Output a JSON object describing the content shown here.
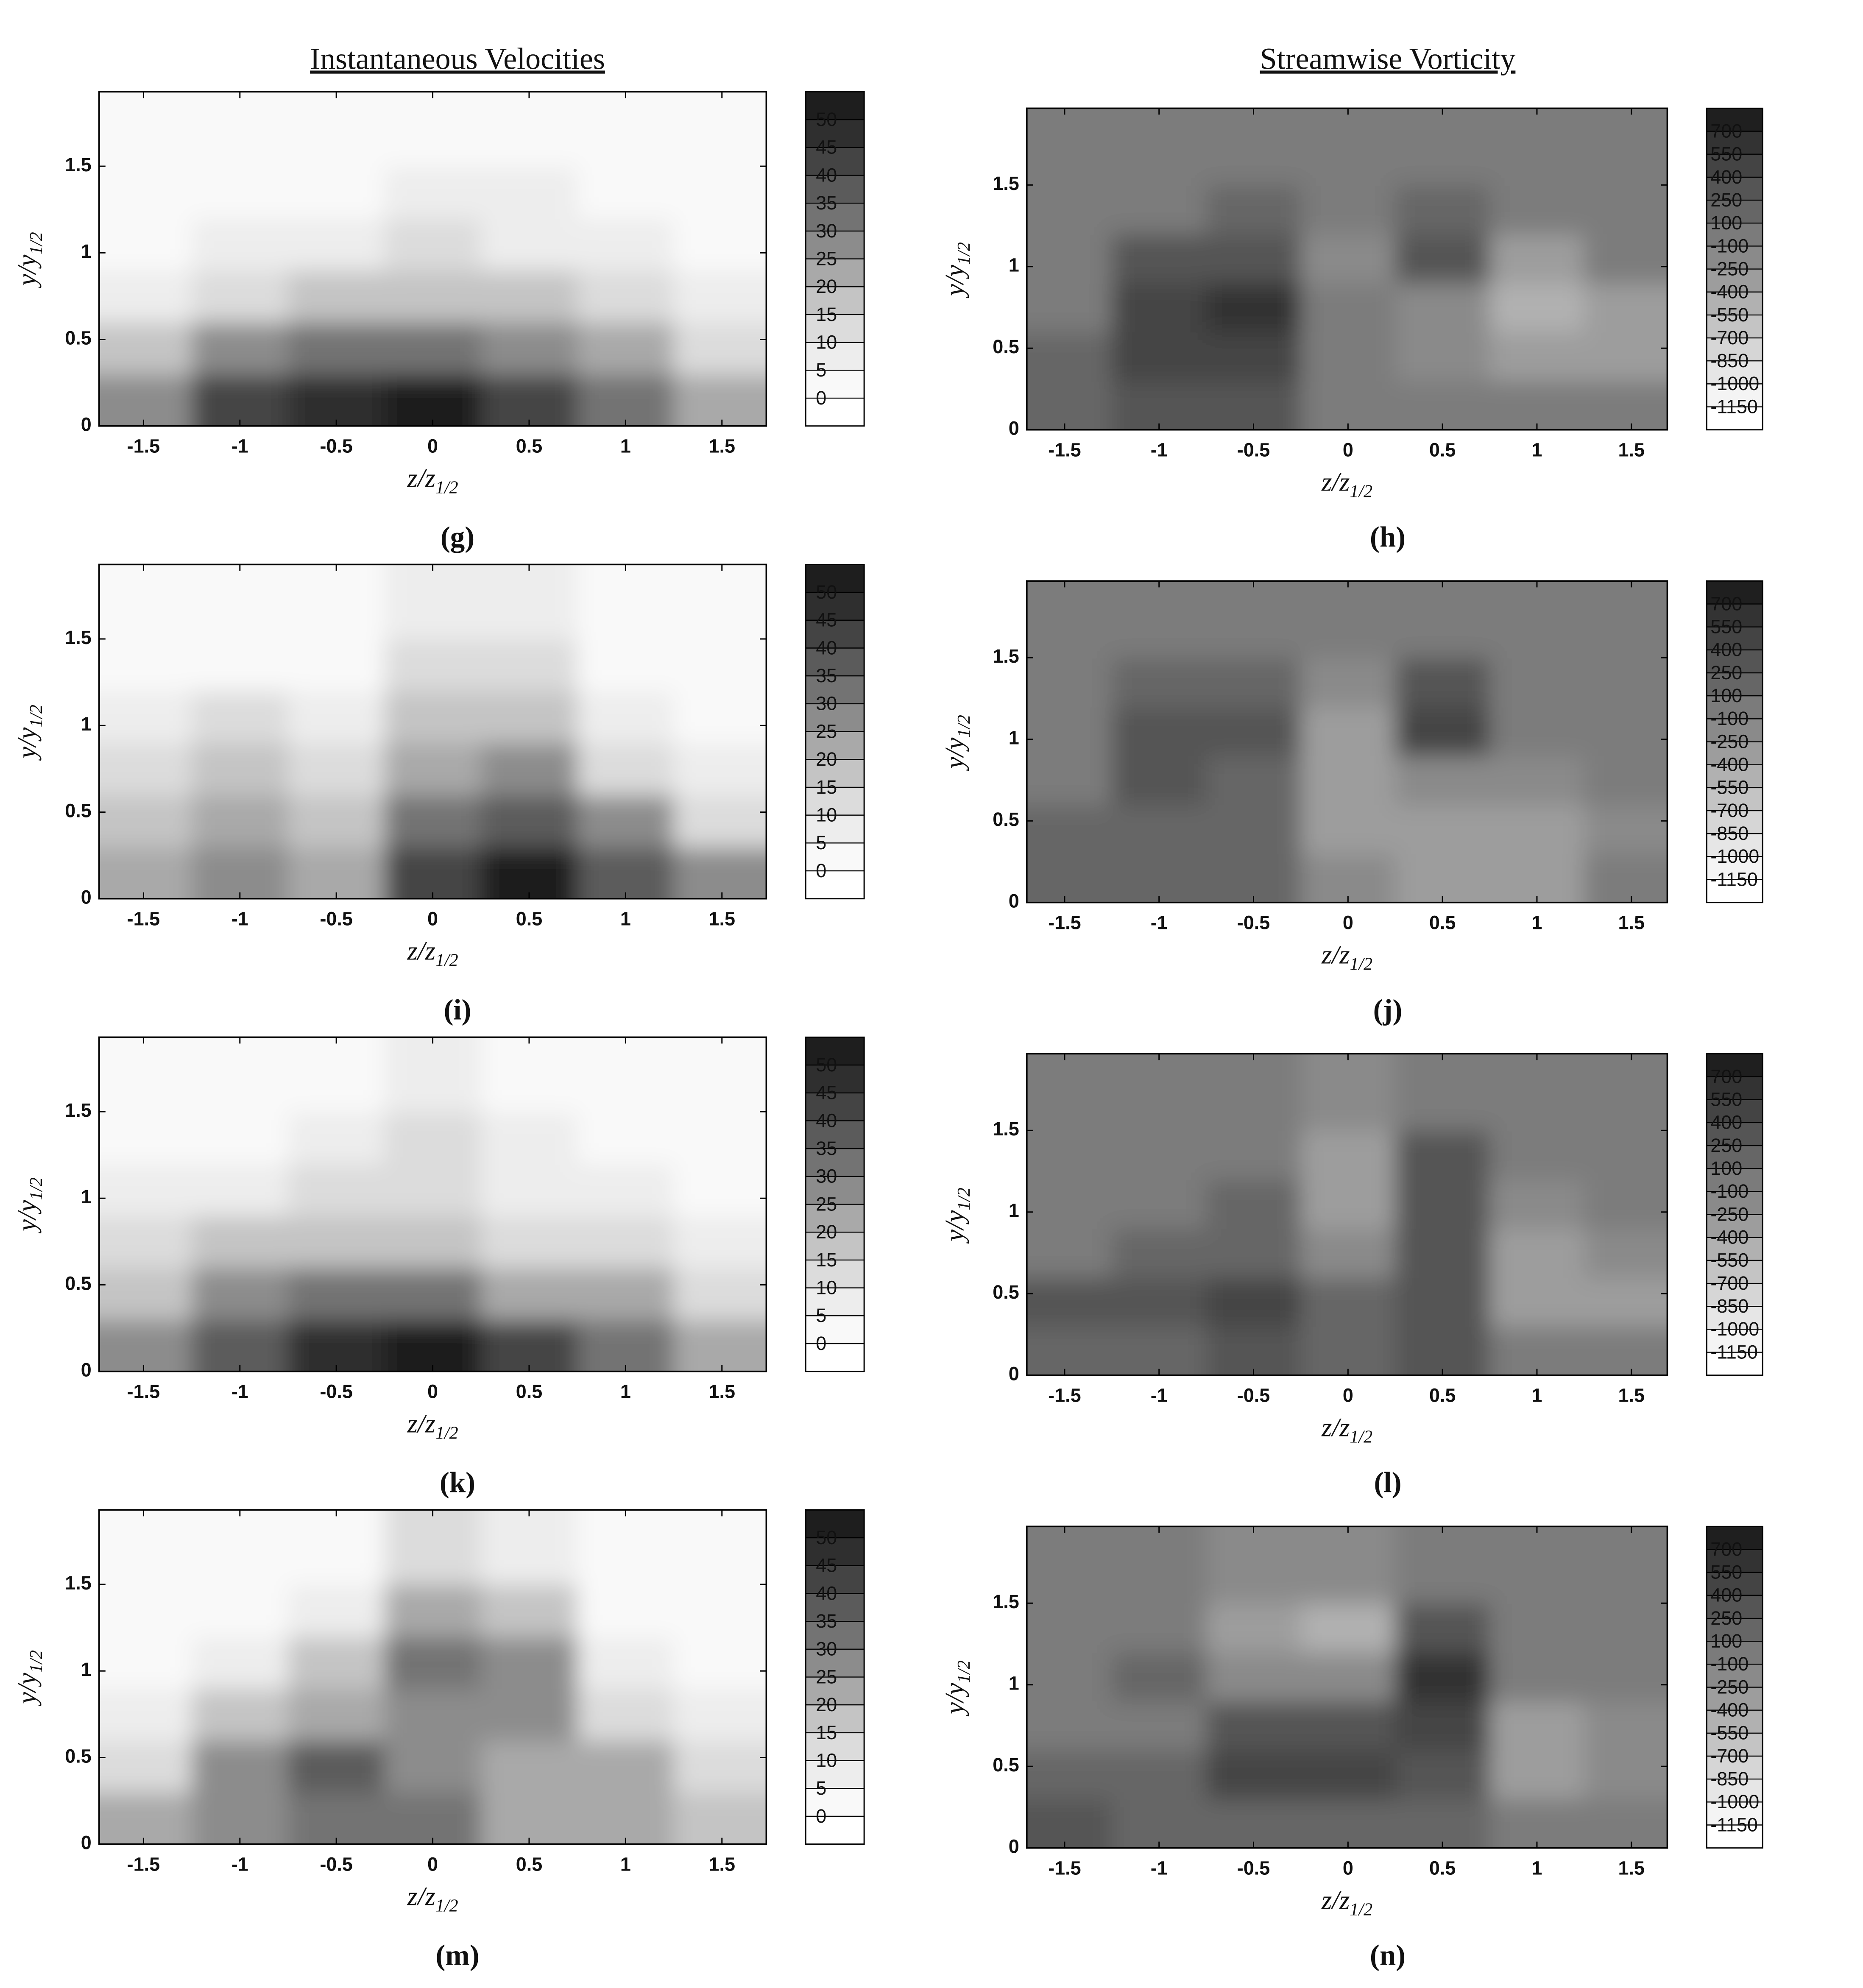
{
  "chart_data": [
    {
      "type": "contour",
      "title": "Instantaneous Velocities",
      "label": "(g)",
      "xlabel": {
        "text": "z/z",
        "sub": "1/2"
      },
      "ylabel": {
        "text": "y/y",
        "sub": "1/2"
      },
      "xlim": [
        -1.73,
        1.73
      ],
      "ylim": [
        0,
        1.93
      ],
      "xticks": [
        -1.5,
        -1,
        -0.5,
        0,
        0.5,
        1,
        1.5
      ],
      "yticks": [
        0,
        0.5,
        1,
        1.5
      ],
      "x": [
        -1.5,
        -1,
        -0.5,
        0,
        0.5,
        1,
        1.5
      ],
      "y": [
        0.15,
        0.45,
        0.75,
        1.05,
        1.35,
        1.65
      ],
      "values": [
        [
          25,
          40,
          48,
          50,
          40,
          30,
          20
        ],
        [
          15,
          25,
          30,
          30,
          25,
          20,
          10
        ],
        [
          8,
          12,
          15,
          15,
          15,
          10,
          5
        ],
        [
          3,
          5,
          5,
          10,
          8,
          5,
          3
        ],
        [
          0,
          0,
          0,
          5,
          5,
          0,
          0
        ],
        [
          0,
          0,
          0,
          0,
          0,
          0,
          0
        ]
      ],
      "levels": [
        0,
        5,
        10,
        15,
        20,
        25,
        30,
        35,
        40,
        45,
        50
      ],
      "colors": [
        "#ffffff",
        "#f9f9f9",
        "#ededed",
        "#dcdcdc",
        "#c4c4c4",
        "#a9a9a9",
        "#8c8c8c",
        "#737373",
        "#5b5b5b",
        "#444444",
        "#2f2f2f",
        "#1e1e1e"
      ]
    },
    {
      "type": "contour",
      "title": "Streamwise Vorticity",
      "label": "(h)",
      "xlabel": {
        "text": "z/z",
        "sub": "1/2"
      },
      "ylabel": {
        "text": "y/y",
        "sub": "1/2"
      },
      "xlim": [
        -1.7,
        1.69
      ],
      "ylim": [
        0,
        1.97
      ],
      "xticks": [
        -1.5,
        -1,
        -0.5,
        0,
        0.5,
        1,
        1.5
      ],
      "yticks": [
        0,
        0.5,
        1,
        1.5
      ],
      "x": [
        -1.5,
        -1,
        -0.5,
        0,
        0.5,
        1,
        1.5
      ],
      "y": [
        0.15,
        0.45,
        0.75,
        1.05,
        1.35,
        1.65
      ],
      "values": [
        [
          200,
          300,
          300,
          0,
          0,
          0,
          0
        ],
        [
          150,
          400,
          450,
          0,
          -200,
          -400,
          -300
        ],
        [
          0,
          400,
          550,
          0,
          -150,
          -550,
          -300
        ],
        [
          0,
          250,
          250,
          -200,
          300,
          -300,
          0
        ],
        [
          0,
          0,
          150,
          0,
          150,
          0,
          0
        ],
        [
          0,
          0,
          0,
          0,
          0,
          0,
          0
        ]
      ],
      "levels": [
        -1150,
        -1000,
        -850,
        -700,
        -550,
        -400,
        -250,
        -100,
        100,
        250,
        400,
        550,
        700
      ],
      "colors": [
        "#ffffff",
        "#f4f4f4",
        "#e6e6e6",
        "#d6d6d6",
        "#c4c4c4",
        "#b1b1b1",
        "#9d9d9d",
        "#8a8a8a",
        "#7b7b7b",
        "#666666",
        "#555555",
        "#444444",
        "#333333",
        "#1f1f1f"
      ]
    },
    {
      "type": "contour",
      "label": "(i)",
      "xlabel": {
        "text": "z/z",
        "sub": "1/2"
      },
      "ylabel": {
        "text": "y/y",
        "sub": "1/2"
      },
      "xlim": [
        -1.73,
        1.73
      ],
      "ylim": [
        0,
        1.93
      ],
      "xticks": [
        -1.5,
        -1,
        -0.5,
        0,
        0.5,
        1,
        1.5
      ],
      "yticks": [
        0,
        0.5,
        1,
        1.5
      ],
      "x": [
        -1.5,
        -1,
        -0.5,
        0,
        0.5,
        1,
        1.5
      ],
      "y": [
        0.15,
        0.45,
        0.75,
        1.05,
        1.35,
        1.65
      ],
      "values": [
        [
          20,
          25,
          20,
          40,
          50,
          35,
          25
        ],
        [
          15,
          20,
          15,
          30,
          35,
          25,
          10
        ],
        [
          10,
          15,
          10,
          20,
          25,
          10,
          5
        ],
        [
          5,
          10,
          5,
          15,
          15,
          5,
          0
        ],
        [
          0,
          0,
          0,
          10,
          10,
          0,
          0
        ],
        [
          0,
          0,
          0,
          5,
          5,
          0,
          0
        ]
      ],
      "levels": [
        0,
        5,
        10,
        15,
        20,
        25,
        30,
        35,
        40,
        45,
        50
      ],
      "colors": [
        "#ffffff",
        "#f9f9f9",
        "#ededed",
        "#dcdcdc",
        "#c4c4c4",
        "#a9a9a9",
        "#8c8c8c",
        "#737373",
        "#5b5b5b",
        "#444444",
        "#2f2f2f",
        "#1e1e1e"
      ]
    },
    {
      "type": "contour",
      "label": "(j)",
      "xlabel": {
        "text": "z/z",
        "sub": "1/2"
      },
      "ylabel": {
        "text": "y/y",
        "sub": "1/2"
      },
      "xlim": [
        -1.7,
        1.69
      ],
      "ylim": [
        0,
        1.97
      ],
      "xticks": [
        -1.5,
        -1,
        -0.5,
        0,
        0.5,
        1,
        1.5
      ],
      "yticks": [
        0,
        0.5,
        1,
        1.5
      ],
      "x": [
        -1.5,
        -1,
        -0.5,
        0,
        0.5,
        1,
        1.5
      ],
      "y": [
        0.15,
        0.45,
        0.75,
        1.05,
        1.35,
        1.65
      ],
      "values": [
        [
          200,
          150,
          200,
          -200,
          -300,
          -300,
          0
        ],
        [
          150,
          200,
          150,
          -400,
          -300,
          -400,
          -200
        ],
        [
          0,
          250,
          200,
          -400,
          -250,
          -200,
          0
        ],
        [
          0,
          350,
          250,
          -400,
          400,
          0,
          0
        ],
        [
          0,
          200,
          200,
          -200,
          250,
          0,
          0
        ],
        [
          0,
          0,
          0,
          -100,
          0,
          0,
          0
        ]
      ],
      "levels": [
        -1150,
        -1000,
        -850,
        -700,
        -550,
        -400,
        -250,
        -100,
        100,
        250,
        400,
        550,
        700
      ],
      "colors": [
        "#ffffff",
        "#f4f4f4",
        "#e6e6e6",
        "#d6d6d6",
        "#c4c4c4",
        "#b1b1b1",
        "#9d9d9d",
        "#8a8a8a",
        "#7b7b7b",
        "#666666",
        "#555555",
        "#444444",
        "#333333",
        "#1f1f1f"
      ]
    },
    {
      "type": "contour",
      "label": "(k)",
      "xlabel": {
        "text": "z/z",
        "sub": "1/2"
      },
      "ylabel": {
        "text": "y/y",
        "sub": "1/2"
      },
      "xlim": [
        -1.73,
        1.73
      ],
      "ylim": [
        0,
        1.93
      ],
      "xticks": [
        -1.5,
        -1,
        -0.5,
        0,
        0.5,
        1,
        1.5
      ],
      "yticks": [
        0,
        0.5,
        1,
        1.5
      ],
      "x": [
        -1.5,
        -1,
        -0.5,
        0,
        0.5,
        1,
        1.5
      ],
      "y": [
        0.15,
        0.45,
        0.75,
        1.05,
        1.35,
        1.65
      ],
      "values": [
        [
          25,
          35,
          45,
          50,
          40,
          30,
          20
        ],
        [
          15,
          25,
          30,
          30,
          20,
          20,
          10
        ],
        [
          10,
          15,
          15,
          15,
          10,
          10,
          5
        ],
        [
          5,
          5,
          10,
          10,
          5,
          5,
          0
        ],
        [
          0,
          0,
          5,
          10,
          5,
          0,
          0
        ],
        [
          0,
          0,
          0,
          5,
          0,
          0,
          0
        ]
      ],
      "levels": [
        0,
        5,
        10,
        15,
        20,
        25,
        30,
        35,
        40,
        45,
        50
      ],
      "colors": [
        "#ffffff",
        "#f9f9f9",
        "#ededed",
        "#dcdcdc",
        "#c4c4c4",
        "#a9a9a9",
        "#8c8c8c",
        "#737373",
        "#5b5b5b",
        "#444444",
        "#2f2f2f",
        "#1e1e1e"
      ]
    },
    {
      "type": "contour",
      "label": "(l)",
      "xlabel": {
        "text": "z/z",
        "sub": "1/2"
      },
      "ylabel": {
        "text": "y/y",
        "sub": "1/2"
      },
      "xlim": [
        -1.7,
        1.69
      ],
      "ylim": [
        0,
        1.97
      ],
      "xticks": [
        -1.5,
        -1,
        -0.5,
        0,
        0.5,
        1,
        1.5
      ],
      "yticks": [
        0,
        0.5,
        1,
        1.5
      ],
      "x": [
        -1.5,
        -1,
        -0.5,
        0,
        0.5,
        1,
        1.5
      ],
      "y": [
        0.15,
        0.45,
        0.75,
        1.05,
        1.35,
        1.65
      ],
      "values": [
        [
          200,
          150,
          300,
          150,
          250,
          -100,
          -100
        ],
        [
          250,
          250,
          400,
          150,
          250,
          -300,
          -300
        ],
        [
          0,
          200,
          150,
          -200,
          300,
          -300,
          -200
        ],
        [
          0,
          0,
          150,
          -300,
          300,
          -200,
          0
        ],
        [
          0,
          0,
          0,
          -400,
          250,
          0,
          0
        ],
        [
          0,
          0,
          0,
          -200,
          0,
          0,
          0
        ]
      ],
      "levels": [
        -1150,
        -1000,
        -850,
        -700,
        -550,
        -400,
        -250,
        -100,
        100,
        250,
        400,
        550,
        700
      ],
      "colors": [
        "#ffffff",
        "#f4f4f4",
        "#e6e6e6",
        "#d6d6d6",
        "#c4c4c4",
        "#b1b1b1",
        "#9d9d9d",
        "#8a8a8a",
        "#7b7b7b",
        "#666666",
        "#555555",
        "#444444",
        "#333333",
        "#1f1f1f"
      ]
    },
    {
      "type": "contour",
      "label": "(m)",
      "xlabel": {
        "text": "z/z",
        "sub": "1/2"
      },
      "ylabel": {
        "text": "y/y",
        "sub": "1/2"
      },
      "xlim": [
        -1.73,
        1.73
      ],
      "ylim": [
        0,
        1.93
      ],
      "xticks": [
        -1.5,
        -1,
        -0.5,
        0,
        0.5,
        1,
        1.5
      ],
      "yticks": [
        0,
        0.5,
        1,
        1.5
      ],
      "x": [
        -1.5,
        -1,
        -0.5,
        0,
        0.5,
        1,
        1.5
      ],
      "y": [
        0.15,
        0.45,
        0.75,
        1.05,
        1.35,
        1.65
      ],
      "values": [
        [
          20,
          25,
          30,
          30,
          20,
          20,
          15
        ],
        [
          10,
          25,
          35,
          25,
          20,
          20,
          10
        ],
        [
          5,
          15,
          20,
          25,
          25,
          10,
          5
        ],
        [
          0,
          5,
          15,
          30,
          25,
          5,
          0
        ],
        [
          0,
          0,
          5,
          20,
          15,
          0,
          0
        ],
        [
          0,
          0,
          0,
          10,
          5,
          0,
          0
        ]
      ],
      "levels": [
        0,
        5,
        10,
        15,
        20,
        25,
        30,
        35,
        40,
        45,
        50
      ],
      "colors": [
        "#ffffff",
        "#f9f9f9",
        "#ededed",
        "#dcdcdc",
        "#c4c4c4",
        "#a9a9a9",
        "#8c8c8c",
        "#737373",
        "#5b5b5b",
        "#444444",
        "#2f2f2f",
        "#1e1e1e"
      ]
    },
    {
      "type": "contour",
      "label": "(n)",
      "xlabel": {
        "text": "z/z",
        "sub": "1/2"
      },
      "ylabel": {
        "text": "y/y",
        "sub": "1/2"
      },
      "xlim": [
        -1.7,
        1.69
      ],
      "ylim": [
        0,
        1.97
      ],
      "xticks": [
        -1.5,
        -1,
        -0.5,
        0,
        0.5,
        1,
        1.5
      ],
      "yticks": [
        0,
        0.5,
        1,
        1.5
      ],
      "x": [
        -1.5,
        -1,
        -0.5,
        0,
        0.5,
        1,
        1.5
      ],
      "y": [
        0.15,
        0.45,
        0.75,
        1.05,
        1.35,
        1.65
      ],
      "values": [
        [
          300,
          100,
          150,
          200,
          150,
          0,
          0
        ],
        [
          200,
          150,
          400,
          400,
          250,
          -400,
          -200
        ],
        [
          0,
          0,
          300,
          350,
          450,
          -300,
          -200
        ],
        [
          0,
          150,
          -200,
          -150,
          550,
          0,
          0
        ],
        [
          0,
          0,
          -400,
          -550,
          300,
          0,
          0
        ],
        [
          0,
          0,
          -200,
          -250,
          0,
          0,
          0
        ]
      ],
      "levels": [
        -1150,
        -1000,
        -850,
        -700,
        -550,
        -400,
        -250,
        -100,
        100,
        250,
        400,
        550,
        700
      ],
      "colors": [
        "#ffffff",
        "#f4f4f4",
        "#e6e6e6",
        "#d6d6d6",
        "#c4c4c4",
        "#b1b1b1",
        "#9d9d9d",
        "#8a8a8a",
        "#7b7b7b",
        "#666666",
        "#555555",
        "#444444",
        "#333333",
        "#1f1f1f"
      ]
    }
  ]
}
